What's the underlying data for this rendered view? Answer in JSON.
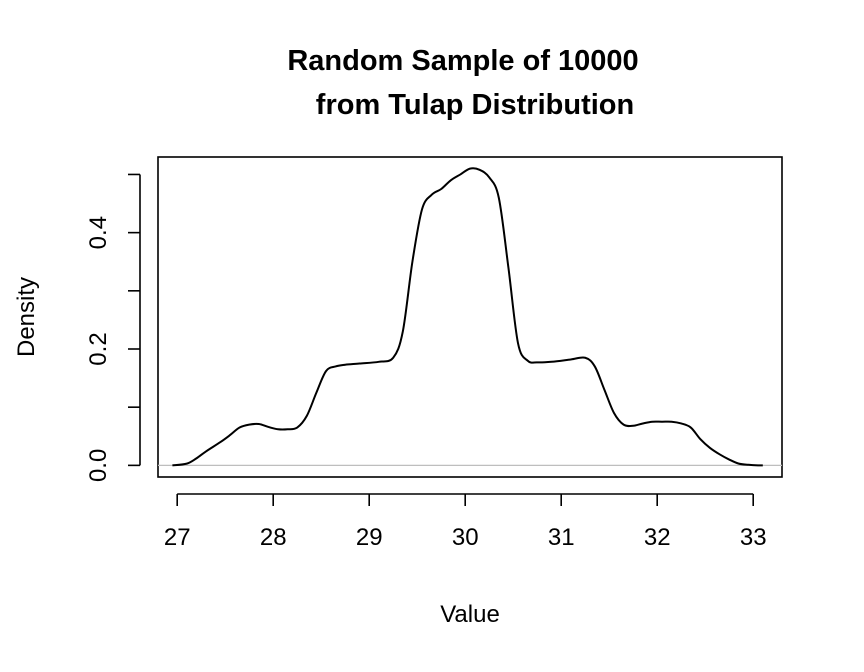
{
  "chart_data": {
    "type": "line",
    "title_line1": "Random Sample of 10000",
    "title_line2": "from Tulap Distribution",
    "xlabel": "Value",
    "ylabel": "Density",
    "xlim": [
      26.8,
      33.3
    ],
    "ylim": [
      -0.02,
      0.53
    ],
    "x_ticks": [
      27,
      28,
      29,
      30,
      31,
      32,
      33
    ],
    "x_tick_labels": [
      "27",
      "28",
      "29",
      "30",
      "31",
      "32",
      "33"
    ],
    "y_ticks": [
      0.0,
      0.1,
      0.2,
      0.3,
      0.4,
      0.5
    ],
    "y_tick_labels": [
      "0.0",
      "",
      "0.2",
      "",
      "0.4",
      ""
    ],
    "baseline_y": 0,
    "baseline_color": "#bebebe",
    "line_color": "#000000",
    "series": [
      {
        "x": [
          26.95,
          27.1,
          27.2,
          27.3,
          27.45,
          27.55,
          27.65,
          27.75,
          27.85,
          27.95,
          28.05,
          28.15,
          28.25,
          28.35,
          28.45,
          28.55,
          28.65,
          28.75,
          28.9,
          29.1,
          29.25,
          29.35,
          29.45,
          29.55,
          29.65,
          29.75,
          29.85,
          29.95,
          30.05,
          30.15,
          30.25,
          30.35,
          30.45,
          30.55,
          30.65,
          30.75,
          30.9,
          31.1,
          31.25,
          31.35,
          31.45,
          31.55,
          31.65,
          31.75,
          31.85,
          31.95,
          32.05,
          32.15,
          32.25,
          32.35,
          32.45,
          32.55,
          32.65,
          32.75,
          32.85,
          32.95,
          33.05,
          33.1
        ],
        "y": [
          0.0,
          0.003,
          0.012,
          0.024,
          0.04,
          0.052,
          0.065,
          0.07,
          0.071,
          0.066,
          0.062,
          0.062,
          0.065,
          0.085,
          0.125,
          0.162,
          0.17,
          0.173,
          0.175,
          0.178,
          0.185,
          0.23,
          0.35,
          0.44,
          0.465,
          0.475,
          0.49,
          0.5,
          0.51,
          0.508,
          0.495,
          0.46,
          0.34,
          0.21,
          0.18,
          0.177,
          0.178,
          0.182,
          0.185,
          0.17,
          0.13,
          0.09,
          0.07,
          0.068,
          0.072,
          0.075,
          0.075,
          0.075,
          0.072,
          0.065,
          0.045,
          0.03,
          0.019,
          0.01,
          0.003,
          0.001,
          0.0,
          0.0
        ]
      }
    ]
  }
}
